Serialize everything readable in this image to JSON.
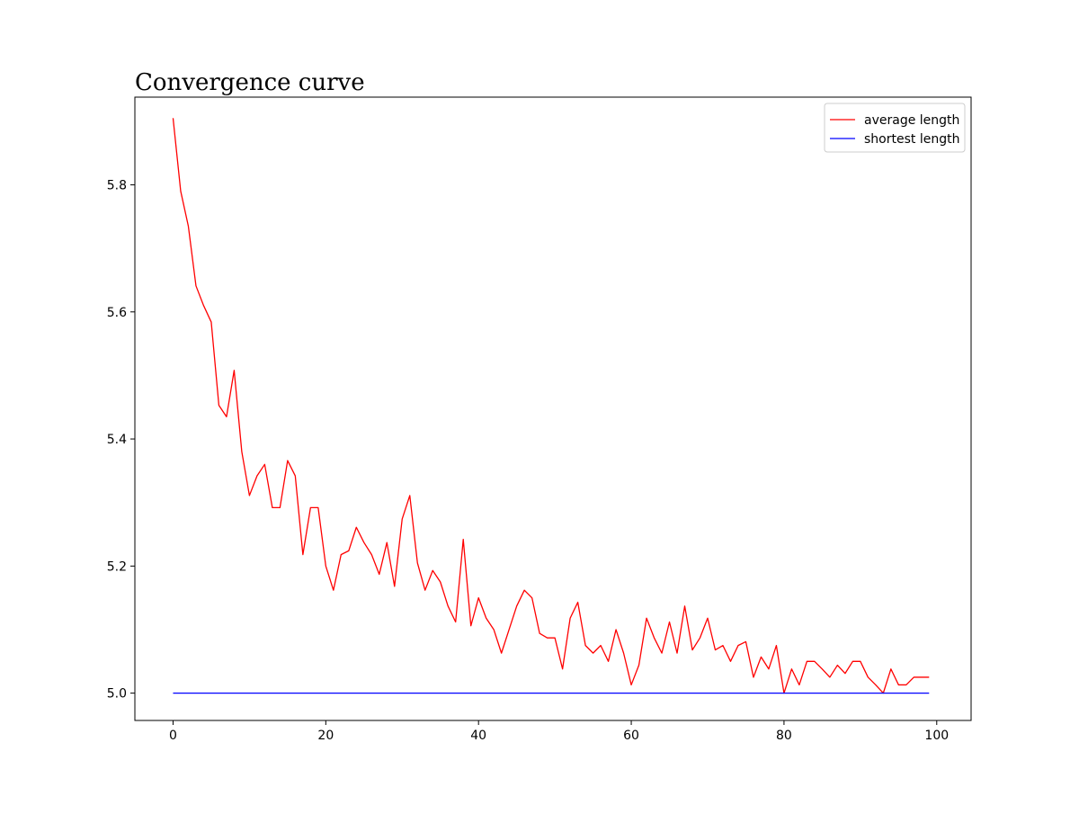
{
  "chart_data": {
    "type": "line",
    "title": "Convergence curve",
    "xlabel": "",
    "ylabel": "",
    "xlim": [
      -5,
      104.5
    ],
    "ylim": [
      4.957,
      5.938
    ],
    "xticks": [
      0,
      20,
      40,
      60,
      80,
      100
    ],
    "yticks": [
      5.0,
      5.2,
      5.4,
      5.6,
      5.8
    ],
    "xtick_labels": [
      "0",
      "20",
      "40",
      "60",
      "80",
      "100"
    ],
    "ytick_labels": [
      "5.0",
      "5.2",
      "5.4",
      "5.6",
      "5.8"
    ],
    "grid": false,
    "legend_position": "top-right",
    "series": [
      {
        "name": "average length",
        "color": "#ff0000",
        "values": [
          5.905,
          5.79,
          5.735,
          5.641,
          5.61,
          5.584,
          5.453,
          5.435,
          5.508,
          5.38,
          5.311,
          5.342,
          5.36,
          5.292,
          5.292,
          5.366,
          5.342,
          5.218,
          5.292,
          5.292,
          5.2,
          5.162,
          5.218,
          5.224,
          5.261,
          5.237,
          5.218,
          5.187,
          5.237,
          5.168,
          5.274,
          5.311,
          5.205,
          5.162,
          5.193,
          5.175,
          5.137,
          5.112,
          5.242,
          5.106,
          5.15,
          5.118,
          5.1,
          5.063,
          5.1,
          5.137,
          5.162,
          5.15,
          5.094,
          5.087,
          5.087,
          5.038,
          5.118,
          5.143,
          5.075,
          5.063,
          5.075,
          5.05,
          5.1,
          5.063,
          5.013,
          5.044,
          5.118,
          5.087,
          5.063,
          5.112,
          5.063,
          5.137,
          5.068,
          5.087,
          5.118,
          5.068,
          5.075,
          5.05,
          5.075,
          5.081,
          5.025,
          5.057,
          5.038,
          5.075,
          5.0,
          5.038,
          5.013,
          5.05,
          5.05,
          5.038,
          5.025,
          5.044,
          5.031,
          5.05,
          5.05,
          5.025,
          5.013,
          5.0,
          5.038,
          5.013,
          5.013,
          5.025,
          5.025,
          5.025
        ]
      },
      {
        "name": "shortest length",
        "color": "#0000ff",
        "values": [
          5.0,
          5.0,
          5.0,
          5.0,
          5.0,
          5.0,
          5.0,
          5.0,
          5.0,
          5.0,
          5.0,
          5.0,
          5.0,
          5.0,
          5.0,
          5.0,
          5.0,
          5.0,
          5.0,
          5.0,
          5.0,
          5.0,
          5.0,
          5.0,
          5.0,
          5.0,
          5.0,
          5.0,
          5.0,
          5.0,
          5.0,
          5.0,
          5.0,
          5.0,
          5.0,
          5.0,
          5.0,
          5.0,
          5.0,
          5.0,
          5.0,
          5.0,
          5.0,
          5.0,
          5.0,
          5.0,
          5.0,
          5.0,
          5.0,
          5.0,
          5.0,
          5.0,
          5.0,
          5.0,
          5.0,
          5.0,
          5.0,
          5.0,
          5.0,
          5.0,
          5.0,
          5.0,
          5.0,
          5.0,
          5.0,
          5.0,
          5.0,
          5.0,
          5.0,
          5.0,
          5.0,
          5.0,
          5.0,
          5.0,
          5.0,
          5.0,
          5.0,
          5.0,
          5.0,
          5.0,
          5.0,
          5.0,
          5.0,
          5.0,
          5.0,
          5.0,
          5.0,
          5.0,
          5.0,
          5.0,
          5.0,
          5.0,
          5.0,
          5.0,
          5.0,
          5.0,
          5.0,
          5.0,
          5.0,
          5.0
        ]
      }
    ]
  }
}
